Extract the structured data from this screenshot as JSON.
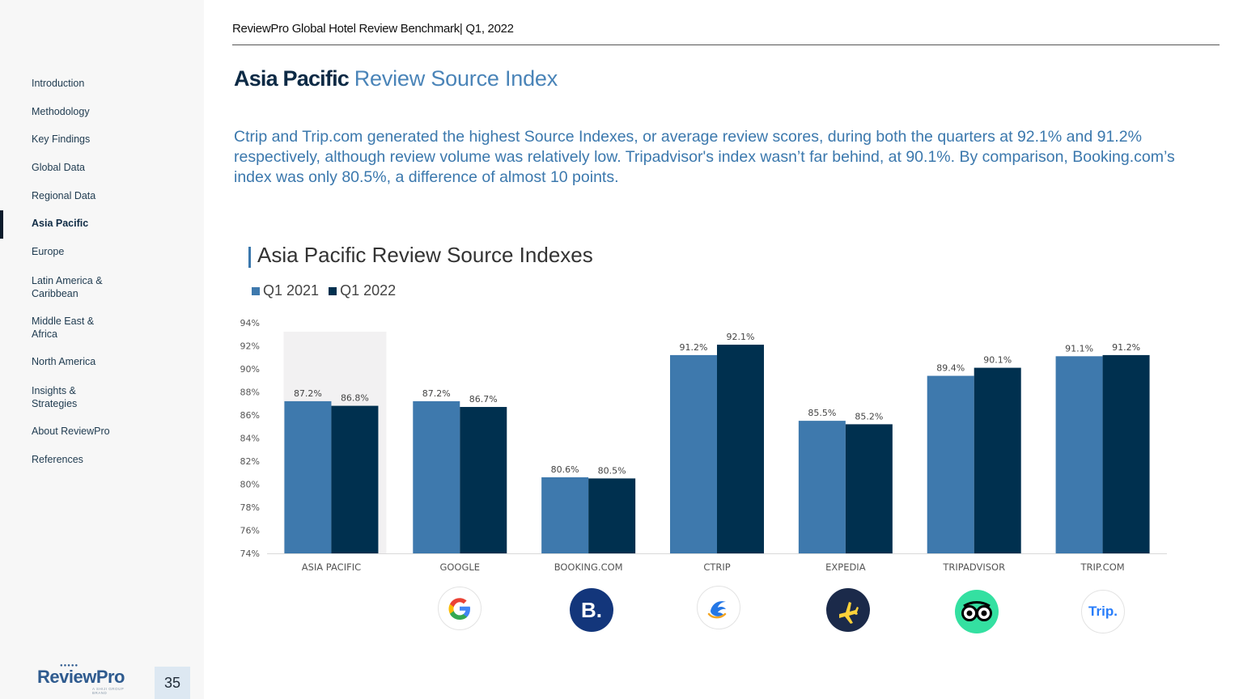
{
  "header": {
    "report_title": "ReviewPro Global Hotel Review Benchmark",
    "separator": "|",
    "period": "Q1, 2022"
  },
  "title": {
    "bold": "Asia Pacific",
    "light": "Review Source Index"
  },
  "intro_text": "Ctrip and Trip.com generated the highest Source Indexes, or average review scores, during both the quarters at 92.1% and 91.2% respectively, although review volume was relatively low. Tripadvisor's index wasn’t far behind, at 90.1%. By comparison, Booking.com’s index was only 80.5%, a difference of almost 10 points.",
  "sidebar": {
    "items": [
      {
        "label": "Introduction"
      },
      {
        "label": "Methodology"
      },
      {
        "label": "Key Findings"
      },
      {
        "label": "Global Data"
      },
      {
        "label": "Regional Data"
      },
      {
        "label": "Asia Pacific"
      },
      {
        "label": "Europe"
      },
      {
        "label": "Latin America & Caribbean"
      },
      {
        "label": "Middle East & Africa"
      },
      {
        "label": "North America"
      },
      {
        "label": "Insights & Strategies"
      },
      {
        "label": "About ReviewPro"
      },
      {
        "label": "References"
      }
    ],
    "active": "Asia Pacific"
  },
  "footer": {
    "logo_text": "ReviewPro",
    "logo_tagline": "A SHIJI GROUP BRAND",
    "page_number": "35"
  },
  "colors": {
    "q1_2021": "#3e79ad",
    "q1_2022": "#00304f",
    "highlight": "#f2f1f2",
    "accent": "#3b78ad"
  },
  "logo_icons": [
    "google-icon",
    "booking-icon",
    "ctrip-icon",
    "expedia-icon",
    "tripadvisor-icon",
    "trip-com-icon"
  ],
  "logo_glyphs": {
    "booking": "B.",
    "trip": "Trip."
  },
  "chart_data": {
    "type": "bar",
    "title": "Asia Pacific Review Source Indexes",
    "categories": [
      "ASIA PACIFIC",
      "GOOGLE",
      "BOOKING.COM",
      "CTRIP",
      "EXPEDIA",
      "TRIPADVISOR",
      "TRIP.COM"
    ],
    "series": [
      {
        "name": "Q1 2021",
        "values": [
          87.2,
          87.2,
          80.6,
          91.2,
          85.5,
          89.4,
          91.1
        ],
        "labels": [
          "87.2%",
          "87.2%",
          "80.6%",
          "91.2%",
          "85.5%",
          "89.4%",
          "91.1%"
        ]
      },
      {
        "name": "Q1 2022",
        "values": [
          86.8,
          86.7,
          80.5,
          92.1,
          85.2,
          90.1,
          91.2
        ],
        "labels": [
          "86.8%",
          "86.7%",
          "80.5%",
          "92.1%",
          "85.2%",
          "90.1%",
          "91.2%"
        ]
      }
    ],
    "ylim": [
      74,
      94
    ],
    "yticks": [
      "74%",
      "76%",
      "78%",
      "80%",
      "82%",
      "84%",
      "86%",
      "88%",
      "90%",
      "92%",
      "94%"
    ],
    "ytick_values": [
      74,
      76,
      78,
      80,
      82,
      84,
      86,
      88,
      90,
      92,
      94
    ],
    "highlighted_category": "ASIA PACIFIC",
    "legend_position": "top-left",
    "grid": false
  }
}
